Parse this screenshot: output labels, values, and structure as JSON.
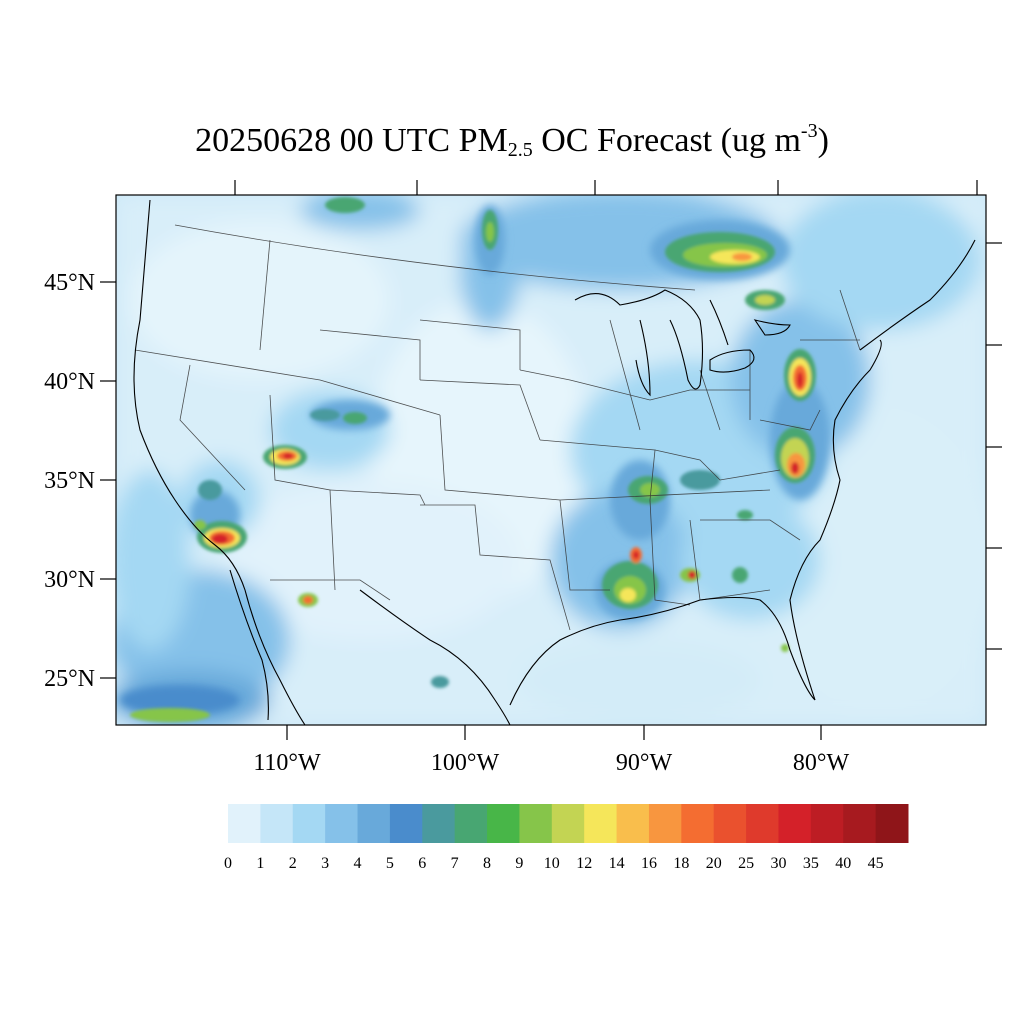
{
  "title": {
    "date_time": "20250628 00 UTC PM",
    "subscript": "2.5",
    "mid": " OC Forecast (ug m",
    "superscript": "-3",
    "end": ")"
  },
  "lat_labels": [
    "45°N",
    "40°N",
    "35°N",
    "30°N",
    "25°N"
  ],
  "lon_labels": [
    "110°W",
    "100°W",
    "90°W",
    "80°W"
  ],
  "colorbar": {
    "labels": [
      "0",
      "1",
      "2",
      "3",
      "4",
      "5",
      "6",
      "7",
      "8",
      "9",
      "10",
      "12",
      "14",
      "16",
      "18",
      "20",
      "25",
      "30",
      "35",
      "40",
      "45"
    ],
    "colors": [
      "#e1f2fb",
      "#c5e6f8",
      "#a4d8f3",
      "#85c1e9",
      "#68a9da",
      "#4a8ccc",
      "#4a9a9e",
      "#48a672",
      "#48b648",
      "#86c54a",
      "#c3d453",
      "#f5e65a",
      "#f9be4c",
      "#f8963f",
      "#f46d31",
      "#ea512e",
      "#df3a2c",
      "#d42129",
      "#bd1d24",
      "#a71a1f",
      "#8f1519"
    ]
  },
  "fields": [
    {
      "name": "utah-smoke",
      "value": 30
    },
    {
      "name": "socal-smoke",
      "value": 35
    },
    {
      "name": "pennsylvania-smoke",
      "value": 25
    },
    {
      "name": "carolina-smoke",
      "value": 25
    },
    {
      "name": "ontario-smoke",
      "value": 16
    },
    {
      "name": "mississippi-smoke",
      "value": 14
    },
    {
      "name": "alabama-smoke",
      "value": 30
    }
  ]
}
